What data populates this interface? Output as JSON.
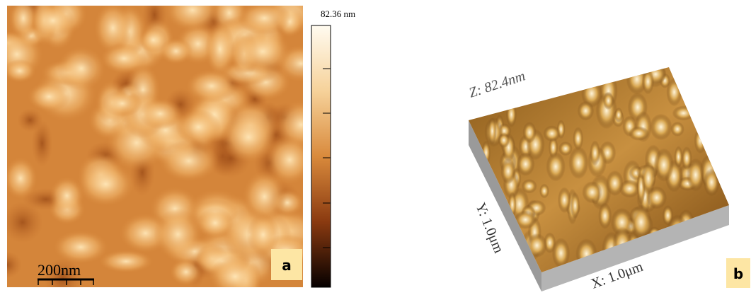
{
  "panel_a": {
    "colorbar_max": "82.36 nm",
    "scale_bar": "200nm",
    "label": "a"
  },
  "panel_b": {
    "z_axis": "Z: 82.4nm",
    "y_axis": "Y: 1.0μm",
    "x_axis": "X: 1.0μm",
    "label": "b"
  }
}
